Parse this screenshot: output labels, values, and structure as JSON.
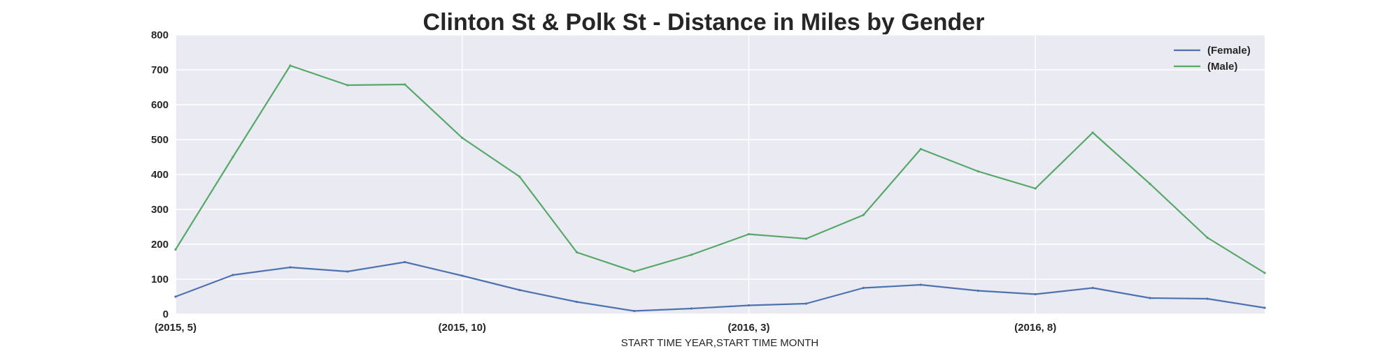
{
  "chart_data": {
    "type": "line",
    "title": "Clinton St & Polk St - Distance in Miles by Gender",
    "xlabel": "START TIME YEAR,START TIME MONTH",
    "ylabel": "",
    "ylim": [
      0,
      800
    ],
    "yticks": [
      0,
      100,
      200,
      300,
      400,
      500,
      600,
      700,
      800
    ],
    "categories": [
      "(2015, 5)",
      "(2015, 6)",
      "(2015, 7)",
      "(2015, 8)",
      "(2015, 9)",
      "(2015, 10)",
      "(2015, 11)",
      "(2015, 12)",
      "(2016, 1)",
      "(2016, 2)",
      "(2016, 3)",
      "(2016, 4)",
      "(2016, 5)",
      "(2016, 6)",
      "(2016, 7)",
      "(2016, 8)",
      "(2016, 9)",
      "(2016, 10)",
      "(2016, 11)",
      "(2016, 12)"
    ],
    "xtick_labels": [
      "(2015, 5)",
      "(2015, 10)",
      "(2016, 3)",
      "(2016, 8)"
    ],
    "series": [
      {
        "name": "(Female)",
        "color": "#4c72b0",
        "values": [
          50,
          112,
          134,
          122,
          149,
          110,
          69,
          35,
          9,
          16,
          25,
          30,
          75,
          84,
          67,
          57,
          75,
          46,
          44,
          18
        ]
      },
      {
        "name": "(Male)",
        "color": "#55a868",
        "values": [
          185,
          450,
          712,
          656,
          658,
          505,
          394,
          177,
          122,
          170,
          229,
          216,
          284,
          473,
          409,
          360,
          520,
          373,
          219,
          118
        ]
      }
    ],
    "grid": true,
    "legend_position": "top-right",
    "background": "#eaeaf2"
  }
}
